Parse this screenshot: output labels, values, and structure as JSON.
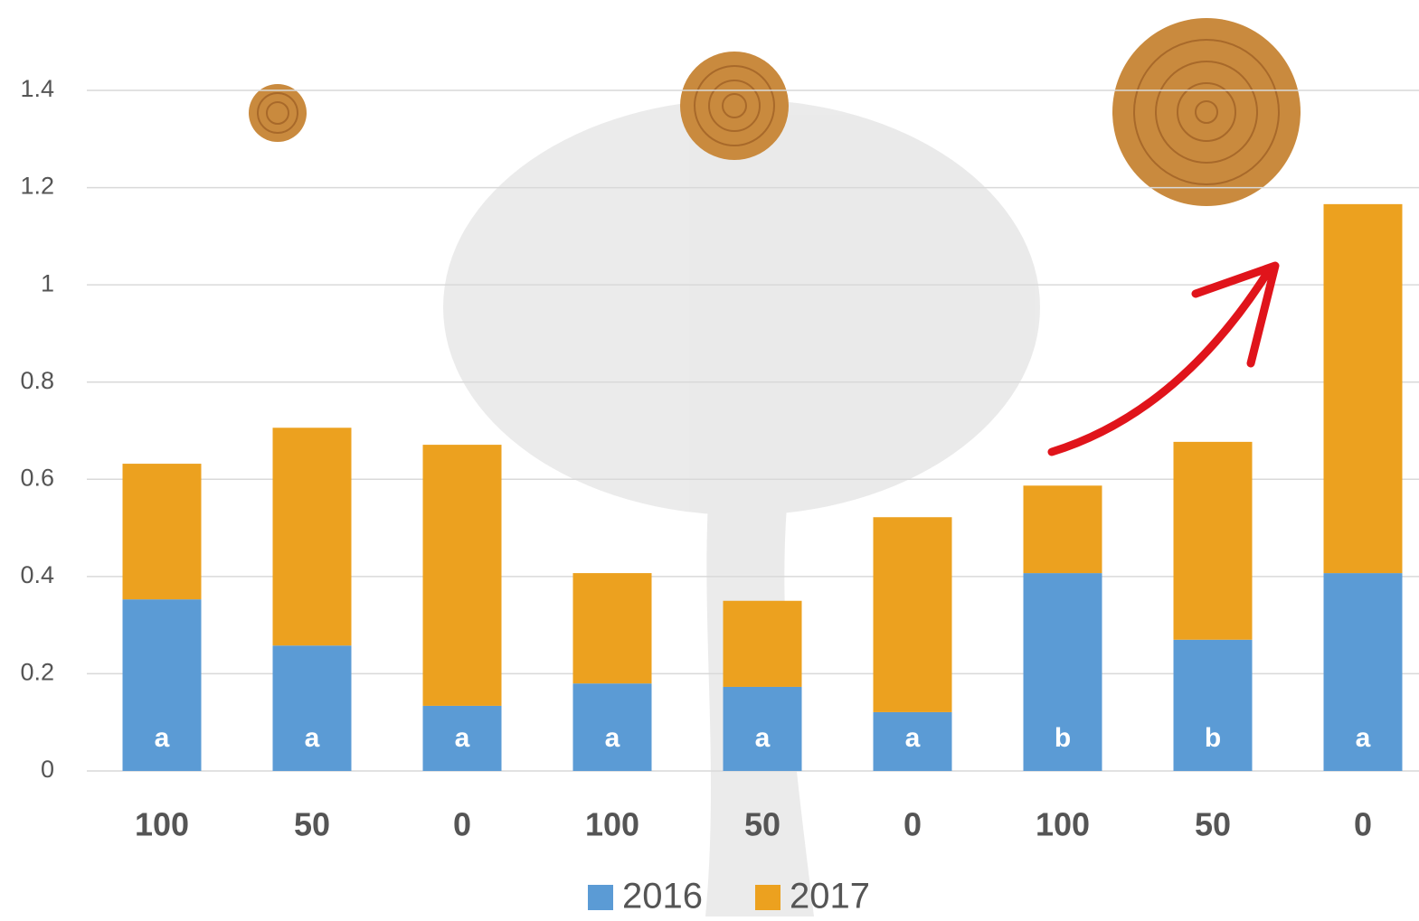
{
  "chart_data": {
    "type": "stacked-bar",
    "categories": [
      "100",
      "50",
      "0",
      "100",
      "50",
      "0",
      "100",
      "50",
      "0"
    ],
    "series": [
      {
        "name": "2016",
        "color": "#5b9bd5",
        "values": [
          0.353,
          0.258,
          0.134,
          0.18,
          0.173,
          0.121,
          0.407,
          0.27,
          0.407
        ]
      },
      {
        "name": "2017",
        "color": "#eca11f",
        "values": [
          0.279,
          0.448,
          0.537,
          0.227,
          0.177,
          0.401,
          0.18,
          0.407,
          0.759
        ]
      }
    ],
    "annotations": [
      "a",
      "a",
      "a",
      "a",
      "a",
      "a",
      "b",
      "b",
      "a"
    ],
    "ylim": [
      0,
      1.4
    ],
    "yticks": [
      0,
      0.2,
      0.4,
      0.6,
      0.8,
      1,
      1.2,
      1.4
    ],
    "grid": true,
    "legend": "bottom"
  }
}
